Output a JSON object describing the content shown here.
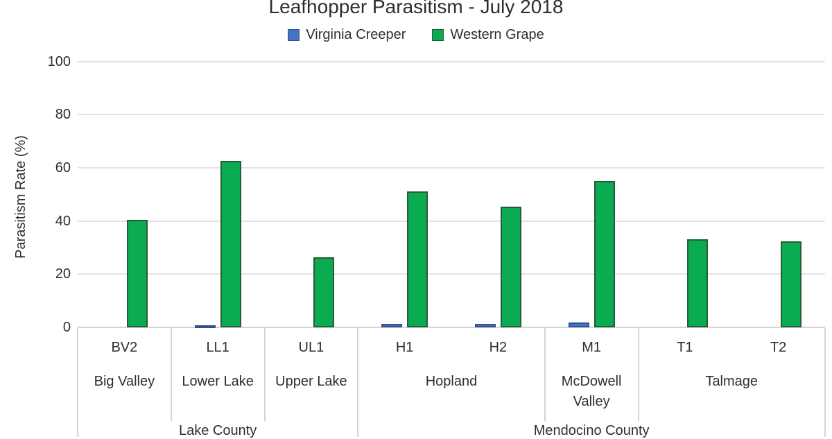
{
  "chart_data": {
    "type": "bar",
    "title": "Leafhopper Parasitism - July 2018",
    "ylabel": "Parasitism Rate (%)",
    "xlabel": "",
    "ylim": [
      0,
      100
    ],
    "yticks": [
      0,
      20,
      40,
      60,
      80,
      100
    ],
    "grid": true,
    "legend_position": "top",
    "categories": [
      "BV2",
      "LL1",
      "UL1",
      "H1",
      "H2",
      "M1",
      "T1",
      "T2"
    ],
    "series": [
      {
        "name": "Virginia Creeper",
        "color": "#4472c4",
        "border_color": "#2f528f",
        "values": [
          0,
          0.8,
          0,
          1.2,
          1.3,
          1.9,
          0,
          0
        ]
      },
      {
        "name": "Western Grape",
        "color": "#0bab51",
        "border_color": "#265c33",
        "values": [
          40.5,
          62.5,
          26.3,
          51.0,
          45.3,
          55.0,
          33.0,
          32.3
        ]
      }
    ],
    "location_groups": [
      {
        "label": "Big Valley",
        "span": 1
      },
      {
        "label": "Lower Lake",
        "span": 1
      },
      {
        "label": "Upper Lake",
        "span": 1
      },
      {
        "label": "Hopland",
        "span": 2
      },
      {
        "label": "McDowell Valley",
        "span": 1
      },
      {
        "label": "Talmage",
        "span": 2
      }
    ],
    "county_groups": [
      {
        "label": "Lake County",
        "span": 3
      },
      {
        "label": "Mendocino County",
        "span": 5
      }
    ],
    "colors": {
      "gridline": "#e3e3e3",
      "axis": "#d4d4d4",
      "text": "#2e2e2e"
    }
  }
}
